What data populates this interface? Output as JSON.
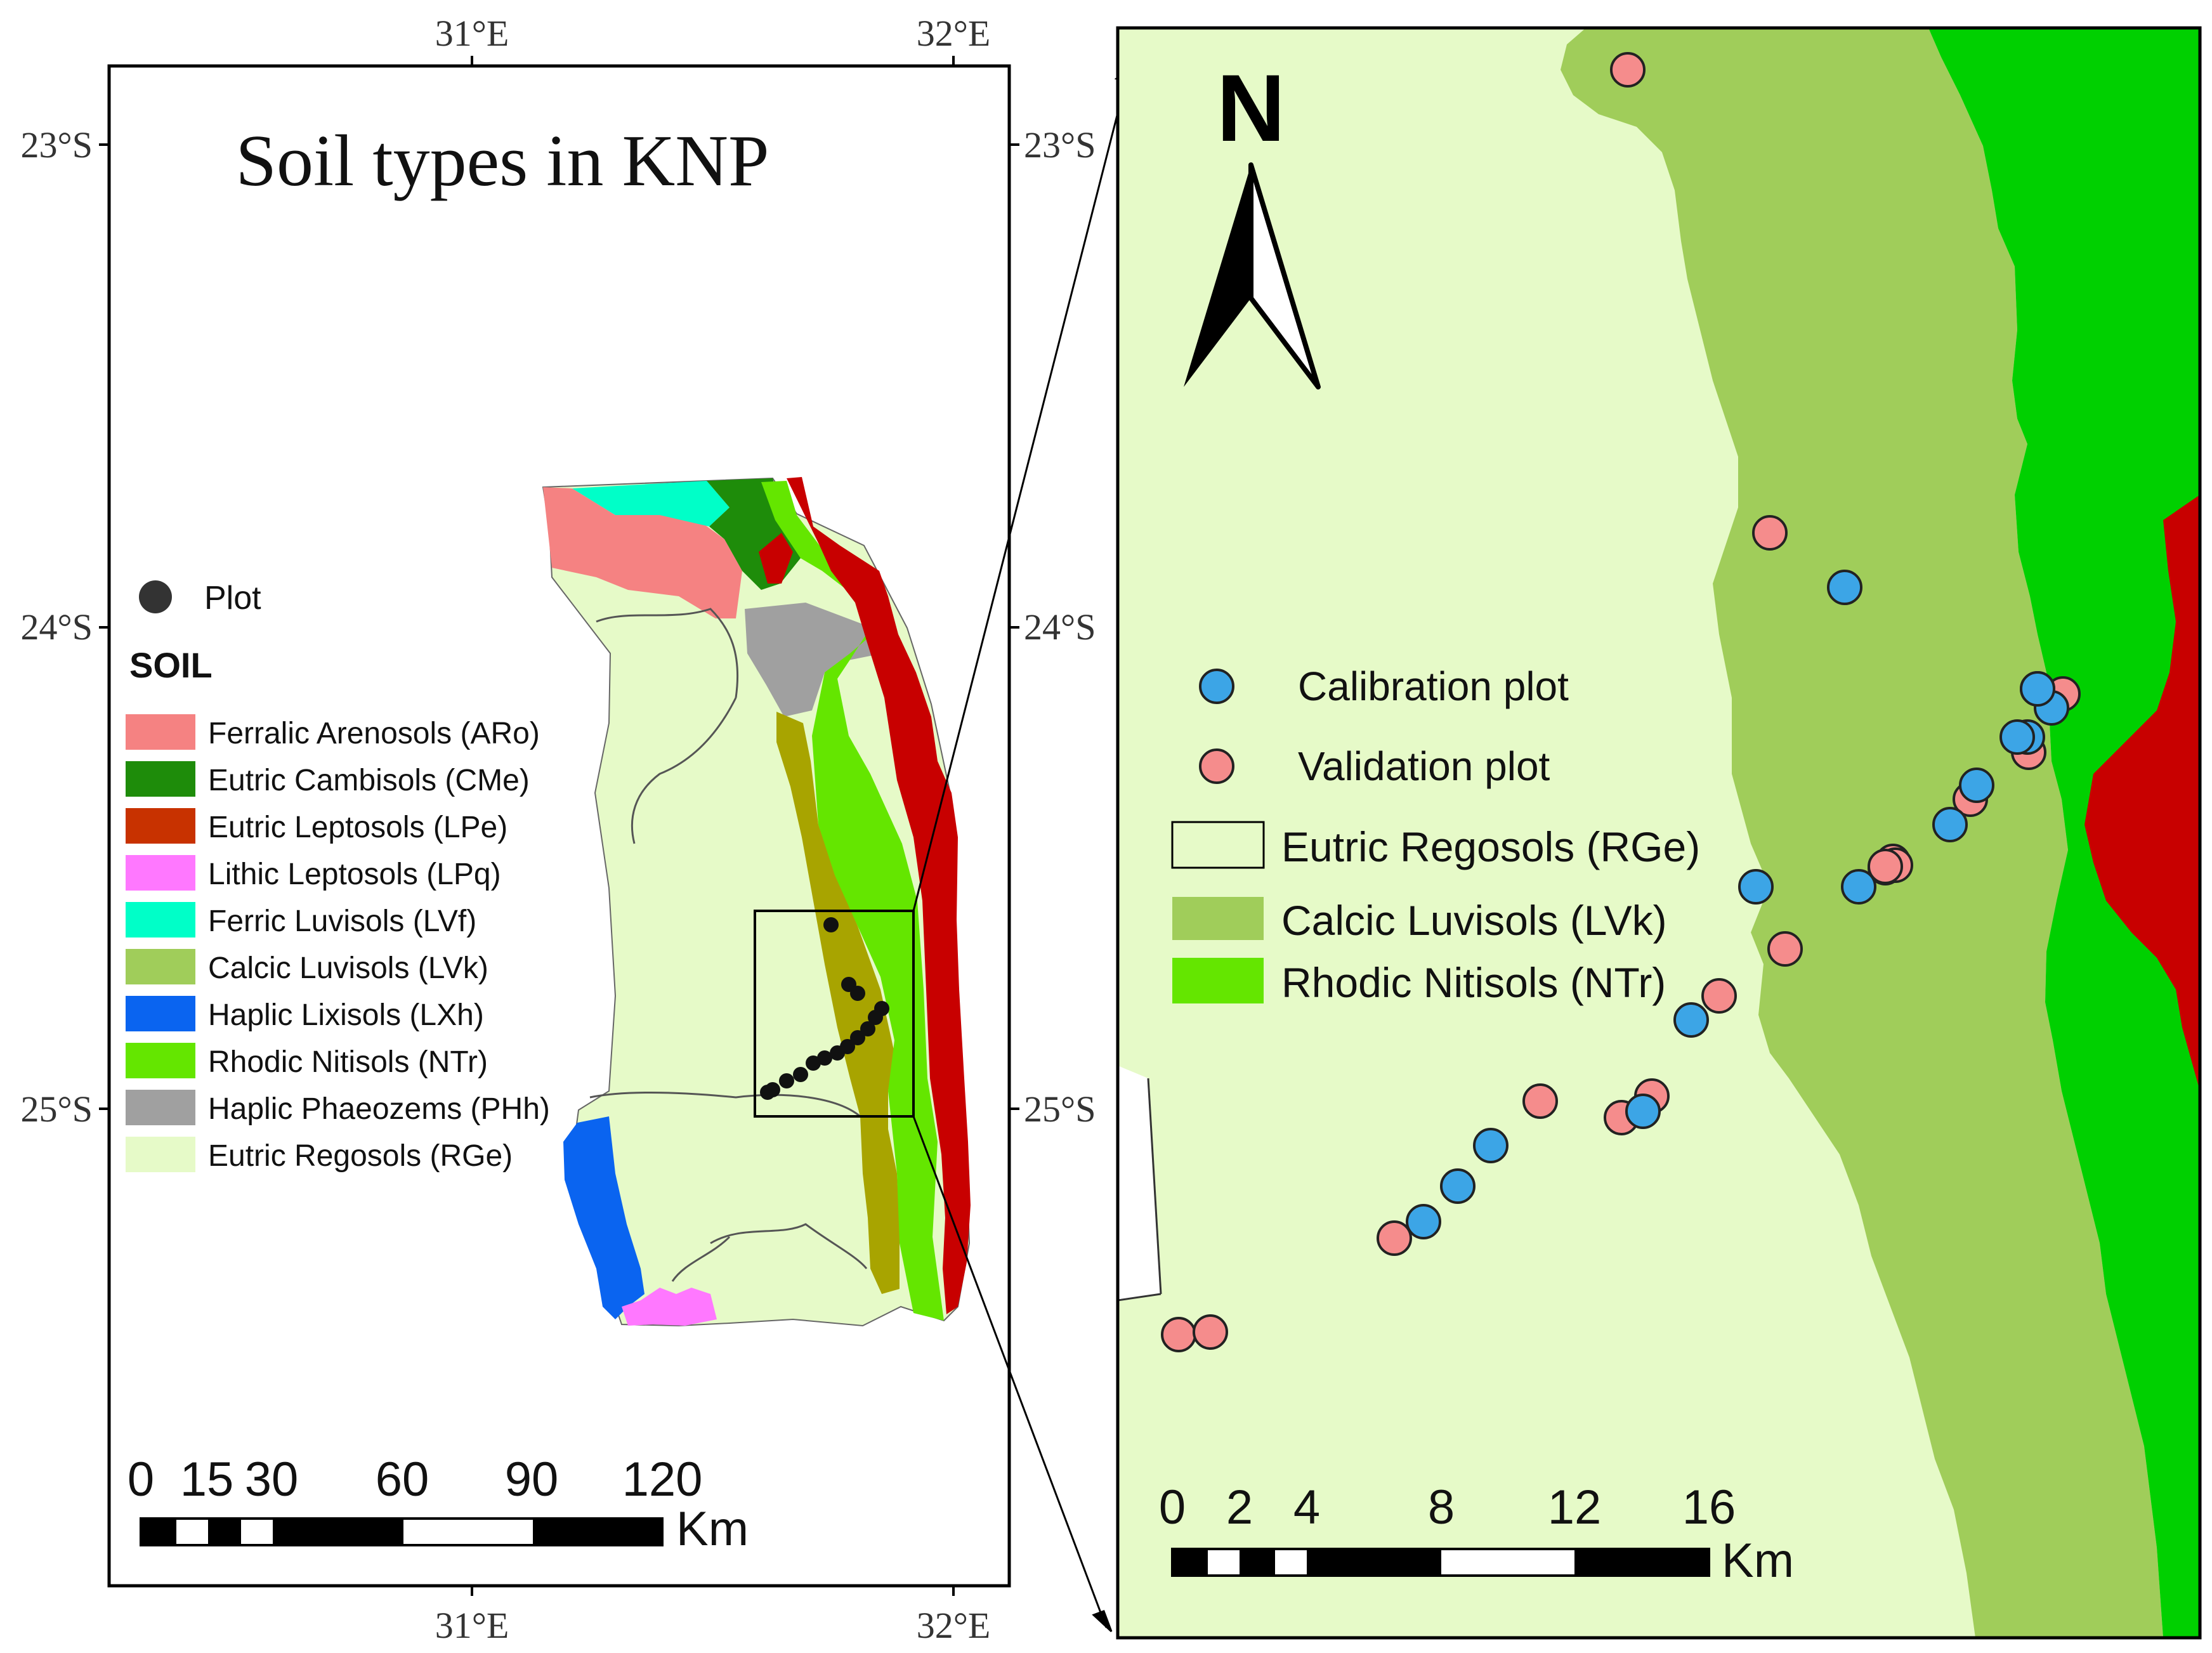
{
  "left_map": {
    "title": "Soil types in KNP",
    "lon_labels": [
      "31°E",
      "32°E"
    ],
    "lat_labels": [
      "23°S",
      "24°S",
      "25°S"
    ],
    "plot_legend_label": "Plot",
    "soil_heading": "SOIL",
    "legend": [
      {
        "label": "Ferralic Arenosols (ARo)",
        "color": "#f58282"
      },
      {
        "label": "Eutric Cambisols (CMe)",
        "color": "#1e8c0a"
      },
      {
        "label": "Eutric Leptosols (LPe)",
        "color": "#c83200"
      },
      {
        "label": "Lithic Leptosols (LPq)",
        "color": "#ff78ff"
      },
      {
        "label": "Ferric Luvisols (LVf)",
        "color": "#00ffc8"
      },
      {
        "label": "Calcic Luvisols (LVk)",
        "color": "#a0cd5a"
      },
      {
        "label": "Haplic Lixisols (LXh)",
        "color": "#0a64f0"
      },
      {
        "label": "Rhodic Nitisols (NTr)",
        "color": "#64e600"
      },
      {
        "label": "Haplic Phaeozems (PHh)",
        "color": "#a0a0a0"
      },
      {
        "label": "Eutric Regosols (RGe)",
        "color": "#e6fac8"
      }
    ],
    "scale_labels": [
      "0",
      "15",
      "30",
      "60",
      "90",
      "120"
    ],
    "scale_unit": "Km"
  },
  "right_map": {
    "north_label": "N",
    "legend": [
      {
        "label": "Calibration plot",
        "color": "#3ca5e6"
      },
      {
        "label": "Validation plot",
        "color": "#f58c8c"
      },
      {
        "label": "Eutric Regosols (RGe)",
        "color": "#e6fac8"
      },
      {
        "label": "Calcic Luvisols (LVk)",
        "color": "#a0cd5a"
      },
      {
        "label": "Rhodic Nitisols (NTr)",
        "color": "#64e600"
      }
    ],
    "scale_labels": [
      "0",
      "2",
      "4",
      "8",
      "12",
      "16"
    ],
    "scale_unit": "Km"
  },
  "colors": {
    "nitisol_inset": "#00d000",
    "leptosol_inset": "#c80000",
    "leptosol_main": "#c80000",
    "calcic_main": "#a8a400",
    "plot_dot": "#111111"
  }
}
